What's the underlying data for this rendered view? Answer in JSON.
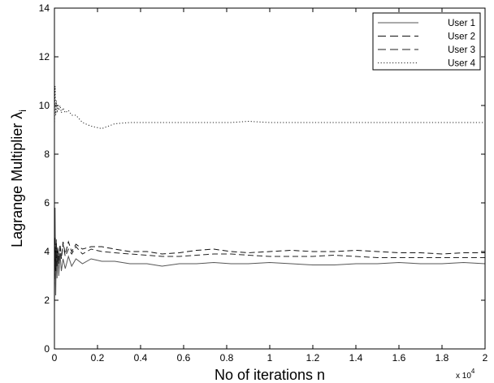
{
  "chart_data": {
    "type": "line",
    "title": "",
    "xlabel": "No of iterations n",
    "ylabel": "Lagrange Multiplier",
    "ylabel_symbol": "λ",
    "ylabel_subscript": "i",
    "x_multiplier_base": "x 10",
    "x_multiplier_exp": "4",
    "xlim": [
      0,
      20000
    ],
    "ylim": [
      0,
      14
    ],
    "x_ticks": [
      0,
      2000,
      4000,
      6000,
      8000,
      10000,
      12000,
      14000,
      16000,
      18000,
      20000
    ],
    "x_tick_labels": [
      "0",
      "0.2",
      "0.4",
      "0.6",
      "0.8",
      "1",
      "1.2",
      "1.4",
      "1.6",
      "1.8",
      "2"
    ],
    "y_ticks": [
      0,
      2,
      4,
      6,
      8,
      10,
      12,
      14
    ],
    "y_tick_labels": [
      "0",
      "2",
      "4",
      "6",
      "8",
      "10",
      "12",
      "14"
    ],
    "grid": false,
    "legend_position": "top-right",
    "series": [
      {
        "name": "User 1",
        "style": "solid",
        "color": "#555555",
        "x": [
          0,
          30,
          60,
          90,
          120,
          160,
          200,
          260,
          320,
          400,
          500,
          650,
          800,
          1000,
          1300,
          1700,
          2200,
          2800,
          3500,
          4300,
          5000,
          5800,
          6600,
          7400,
          8200,
          9000,
          10000,
          11000,
          12000,
          13000,
          14000,
          15000,
          16000,
          17000,
          18000,
          19000,
          20000
        ],
        "y": [
          1.5,
          5.8,
          2.2,
          4.5,
          2.9,
          4.1,
          3.0,
          3.9,
          3.2,
          3.7,
          3.3,
          3.8,
          3.4,
          3.7,
          3.5,
          3.7,
          3.6,
          3.6,
          3.5,
          3.5,
          3.4,
          3.5,
          3.5,
          3.55,
          3.5,
          3.5,
          3.55,
          3.5,
          3.45,
          3.45,
          3.5,
          3.5,
          3.55,
          3.5,
          3.5,
          3.55,
          3.5
        ]
      },
      {
        "name": "User 2",
        "style": "dashed",
        "color": "#111111",
        "x": [
          0,
          30,
          60,
          90,
          120,
          160,
          200,
          260,
          320,
          400,
          500,
          650,
          800,
          1000,
          1300,
          1700,
          2200,
          2800,
          3500,
          4300,
          5000,
          5800,
          6600,
          7400,
          8200,
          9000,
          10000,
          11000,
          12000,
          13000,
          14000,
          15000,
          16000,
          17000,
          18000,
          19000,
          20000
        ],
        "y": [
          2.5,
          4.6,
          3.2,
          4.4,
          3.4,
          4.2,
          3.5,
          4.3,
          3.7,
          4.4,
          3.9,
          4.4,
          4.0,
          4.3,
          4.1,
          4.2,
          4.2,
          4.1,
          4.0,
          4.0,
          3.9,
          3.95,
          4.05,
          4.1,
          4.0,
          3.95,
          4.0,
          4.05,
          4.0,
          4.0,
          4.05,
          4.0,
          3.95,
          3.95,
          3.9,
          3.95,
          3.95
        ]
      },
      {
        "name": "User 3",
        "style": "dashed",
        "color": "#222222",
        "x": [
          0,
          30,
          60,
          90,
          120,
          160,
          200,
          260,
          320,
          400,
          500,
          650,
          800,
          1000,
          1300,
          1700,
          2200,
          2800,
          3500,
          4300,
          5000,
          5800,
          6600,
          7400,
          8200,
          9000,
          10000,
          11000,
          12000,
          13000,
          14000,
          15000,
          16000,
          17000,
          18000,
          19000,
          20000
        ],
        "y": [
          3.0,
          4.2,
          3.3,
          4.3,
          3.5,
          4.1,
          3.6,
          4.2,
          3.7,
          4.3,
          3.8,
          4.1,
          3.9,
          4.2,
          3.9,
          4.1,
          4.0,
          3.95,
          3.9,
          3.85,
          3.8,
          3.8,
          3.85,
          3.9,
          3.9,
          3.85,
          3.8,
          3.8,
          3.8,
          3.85,
          3.8,
          3.75,
          3.75,
          3.75,
          3.75,
          3.75,
          3.75
        ]
      },
      {
        "name": "User 4",
        "style": "dotted",
        "color": "#222222",
        "x": [
          0,
          30,
          60,
          90,
          120,
          160,
          200,
          260,
          320,
          400,
          500,
          650,
          800,
          1000,
          1300,
          1700,
          2200,
          2800,
          3500,
          4300,
          5000,
          5800,
          6600,
          7400,
          8200,
          9000,
          10000,
          11000,
          12000,
          13000,
          14000,
          15000,
          16000,
          17000,
          18000,
          19000,
          20000
        ],
        "y": [
          9.2,
          10.8,
          9.6,
          10.2,
          9.7,
          10.0,
          9.8,
          10.0,
          9.7,
          9.9,
          9.7,
          9.8,
          9.6,
          9.6,
          9.3,
          9.15,
          9.05,
          9.25,
          9.3,
          9.3,
          9.3,
          9.3,
          9.3,
          9.3,
          9.3,
          9.35,
          9.3,
          9.3,
          9.3,
          9.3,
          9.3,
          9.3,
          9.3,
          9.3,
          9.3,
          9.3,
          9.3
        ]
      }
    ]
  }
}
